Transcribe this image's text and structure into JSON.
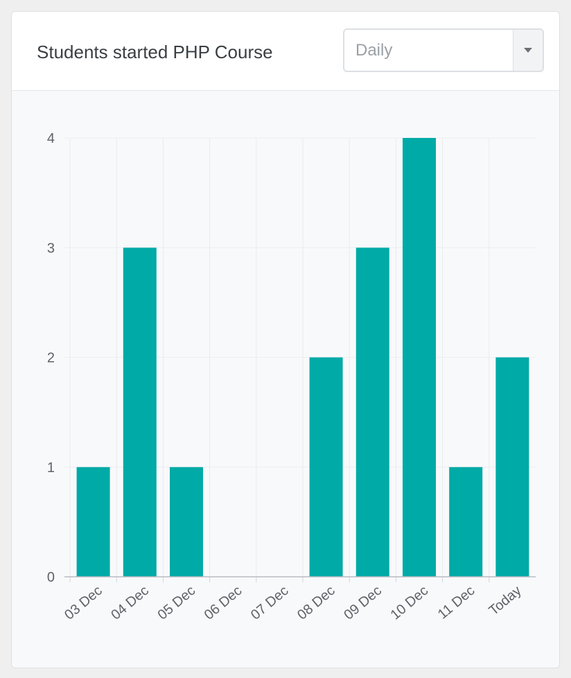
{
  "card": {
    "title": "Students started PHP Course"
  },
  "period_select": {
    "value": "Daily",
    "icon": "caret-down-icon"
  },
  "chart_data": {
    "type": "bar",
    "categories": [
      "03 Dec",
      "04 Dec",
      "05 Dec",
      "06 Dec",
      "07 Dec",
      "08 Dec",
      "09 Dec",
      "10 Dec",
      "11 Dec",
      "Today"
    ],
    "values": [
      1,
      3,
      1,
      0,
      0,
      2,
      3,
      4,
      1,
      2
    ],
    "yticks": [
      "0",
      "1",
      "2",
      "3",
      "4"
    ],
    "ylim": [
      0,
      4
    ],
    "grid": true,
    "bar_color": "#00aaa6"
  }
}
